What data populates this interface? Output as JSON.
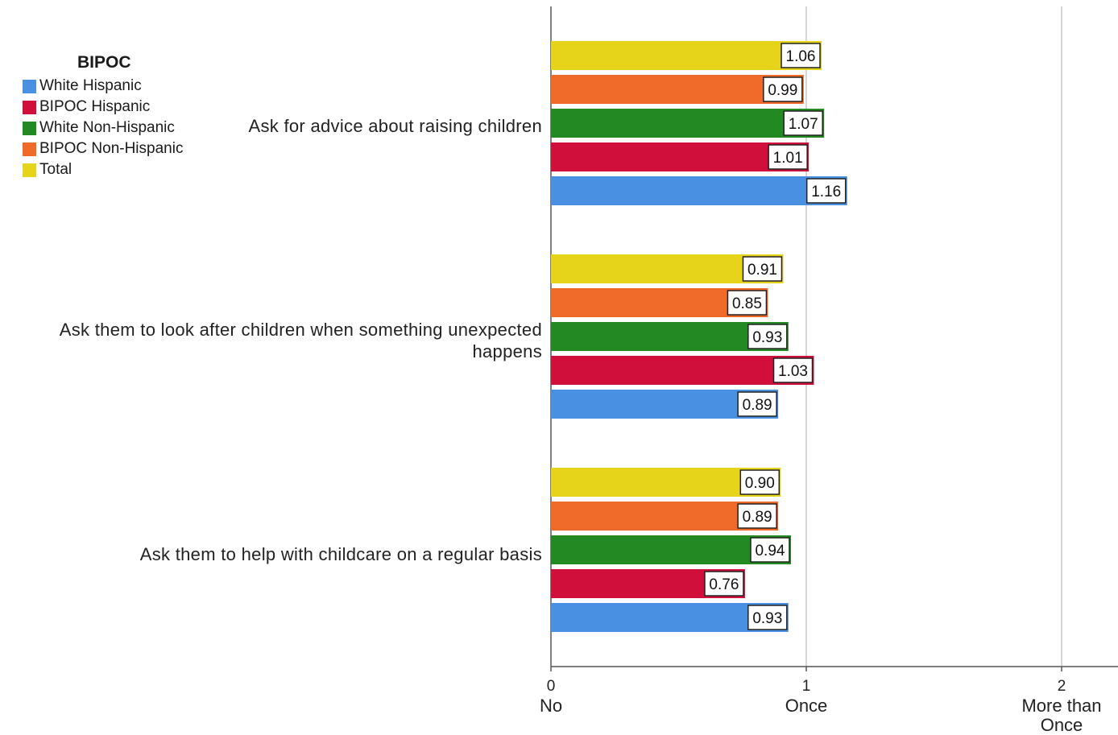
{
  "chart_data": {
    "type": "bar",
    "orientation": "horizontal",
    "categories": [
      "Ask for advice about raising children",
      "Ask them to look after children when something unexpected happens",
      "Ask them to help with childcare on a regular basis"
    ],
    "category_lines": [
      [
        "Ask for advice about raising children"
      ],
      [
        "Ask them to look after children when something unexpected",
        "happens"
      ],
      [
        "Ask them to help with childcare on a regular basis"
      ]
    ],
    "series": [
      {
        "name": "Total",
        "color": "#e6d41a",
        "values": [
          1.06,
          0.91,
          0.9
        ],
        "labels": [
          "1.06",
          "0.91",
          "0.90"
        ]
      },
      {
        "name": "BIPOC Non-Hispanic",
        "color": "#f06a2a",
        "values": [
          0.99,
          0.85,
          0.89
        ],
        "labels": [
          "0.99",
          "0.85",
          "0.89"
        ]
      },
      {
        "name": "White Non-Hispanic",
        "color": "#238a23",
        "values": [
          1.07,
          0.93,
          0.94
        ],
        "labels": [
          "1.07",
          "0.93",
          "0.94"
        ]
      },
      {
        "name": "BIPOC Hispanic",
        "color": "#d0103a",
        "values": [
          1.01,
          1.03,
          0.76
        ],
        "labels": [
          "1.01",
          "1.03",
          "0.76"
        ]
      },
      {
        "name": "White Hispanic",
        "color": "#4a90e2",
        "values": [
          1.16,
          0.89,
          0.93
        ],
        "labels": [
          "1.16",
          "0.89",
          "0.93"
        ]
      }
    ],
    "legend": {
      "title": "BIPOC",
      "placement": "top-left",
      "items": [
        {
          "name": "White Hispanic",
          "color": "#4a90e2"
        },
        {
          "name": "BIPOC Hispanic",
          "color": "#d0103a"
        },
        {
          "name": "White Non-Hispanic",
          "color": "#238a23"
        },
        {
          "name": "BIPOC Non-Hispanic",
          "color": "#f06a2a"
        },
        {
          "name": "Total",
          "color": "#e6d41a"
        }
      ]
    },
    "x_axis": {
      "range": [
        0,
        2
      ],
      "ticks": [
        {
          "value": 0,
          "number": "0",
          "label": [
            "No"
          ]
        },
        {
          "value": 1,
          "number": "1",
          "label": [
            "Once"
          ]
        },
        {
          "value": 2,
          "number": "2",
          "label": [
            "More than",
            "Once"
          ]
        }
      ],
      "grid": true
    },
    "xlabel": "",
    "ylabel": "",
    "title": ""
  }
}
